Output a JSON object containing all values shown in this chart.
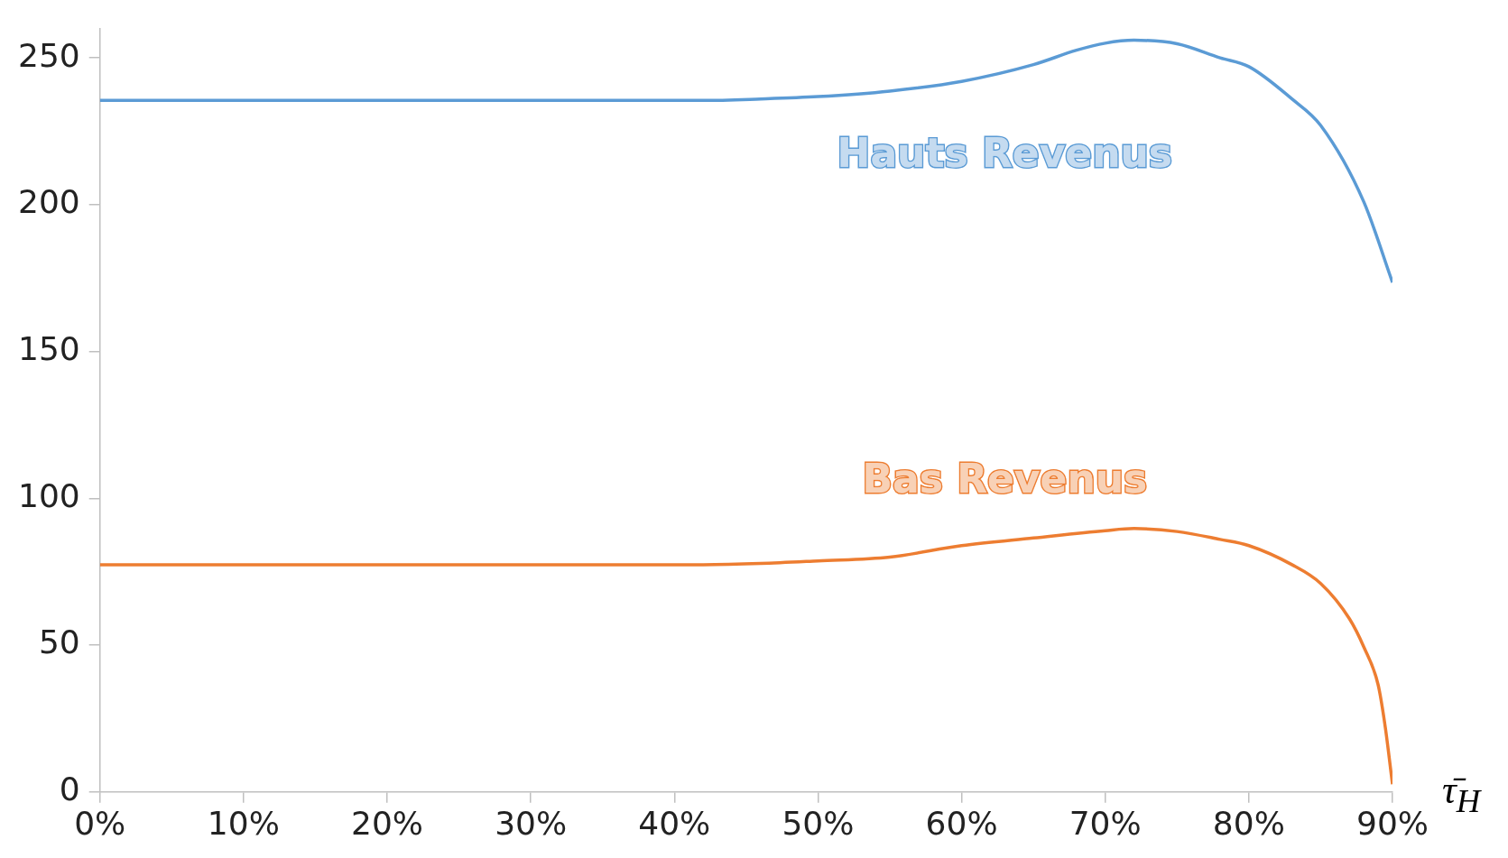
{
  "chart_data": {
    "type": "line",
    "xlabel": "τ̄$_{H}$",
    "xlim": [
      0,
      90
    ],
    "xticks": [
      {
        "value": 0,
        "label": "0%"
      },
      {
        "value": 10,
        "label": "10%"
      },
      {
        "value": 20,
        "label": "20%"
      },
      {
        "value": 30,
        "label": "30%"
      },
      {
        "value": 40,
        "label": "40%"
      },
      {
        "value": 50,
        "label": "50%"
      },
      {
        "value": 60,
        "label": "60%"
      },
      {
        "value": 70,
        "label": "70%"
      },
      {
        "value": 80,
        "label": "80%"
      },
      {
        "value": 90,
        "label": "90%"
      }
    ],
    "ylim": [
      0,
      260
    ],
    "yticks": [
      0,
      50,
      100,
      150,
      200,
      250
    ],
    "grid": false,
    "legend": false,
    "marker": "none",
    "series": [
      {
        "name": "Hauts Revenus",
        "color": "#5b9bd5",
        "x": [
          0,
          42,
          46,
          50,
          55,
          60,
          65,
          68,
          70,
          72,
          75,
          78,
          80,
          83,
          85,
          88,
          90
        ],
        "values": [
          235.5,
          235.5,
          236,
          236.8,
          238.7,
          242,
          247.7,
          252.6,
          255,
          256,
          254.8,
          250,
          247,
          236,
          227,
          201,
          173.5
        ]
      },
      {
        "name": "Bas Revenus",
        "color": "#ed7d31",
        "x": [
          0,
          42,
          46,
          50,
          55,
          60,
          65,
          70,
          72,
          75,
          78,
          80,
          83,
          85,
          87,
          88,
          89,
          89.5,
          90
        ],
        "values": [
          77.4,
          77.4,
          77.8,
          78.7,
          80,
          83.9,
          86.5,
          89,
          89.7,
          88.7,
          86,
          83.9,
          77.4,
          71,
          59,
          49.4,
          36.5,
          22,
          2.6
        ]
      }
    ]
  }
}
